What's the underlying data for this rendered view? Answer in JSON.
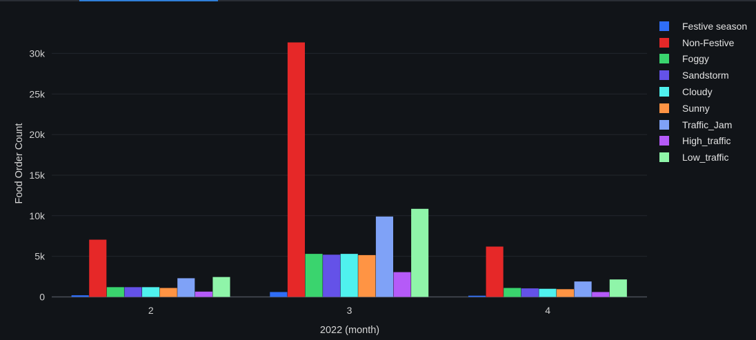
{
  "chart_data": {
    "type": "bar",
    "categories": [
      "2",
      "3",
      "4"
    ],
    "xlabel": "2022 (month)",
    "ylabel": "Food Order Count",
    "ylim": [
      0,
      33000
    ],
    "yticks": [
      0,
      5000,
      10000,
      15000,
      20000,
      25000,
      30000
    ],
    "ytick_labels": [
      "0",
      "5k",
      "10k",
      "15k",
      "20k",
      "25k",
      "30k"
    ],
    "grid": true,
    "legend_position": "right",
    "series": [
      {
        "name": "Festive season",
        "color": "#2f6df6",
        "values": [
          200,
          600,
          150
        ]
      },
      {
        "name": "Non-Festive",
        "color": "#e62828",
        "values": [
          7050,
          31350,
          6200
        ]
      },
      {
        "name": "Foggy",
        "color": "#3ad46e",
        "values": [
          1200,
          5300,
          1100
        ]
      },
      {
        "name": "Sandstorm",
        "color": "#6452e8",
        "values": [
          1200,
          5200,
          1050
        ]
      },
      {
        "name": "Cloudy",
        "color": "#4ff1ee",
        "values": [
          1200,
          5300,
          1000
        ]
      },
      {
        "name": "Sunny",
        "color": "#ff9444",
        "values": [
          1100,
          5150,
          950
        ]
      },
      {
        "name": "Traffic_Jam",
        "color": "#7fa2f7",
        "values": [
          2300,
          9900,
          1900
        ]
      },
      {
        "name": "High_traffic",
        "color": "#b55af8",
        "values": [
          650,
          3050,
          600
        ]
      },
      {
        "name": "Low_traffic",
        "color": "#8ff5a9",
        "values": [
          2450,
          10850,
          2150
        ]
      }
    ]
  }
}
